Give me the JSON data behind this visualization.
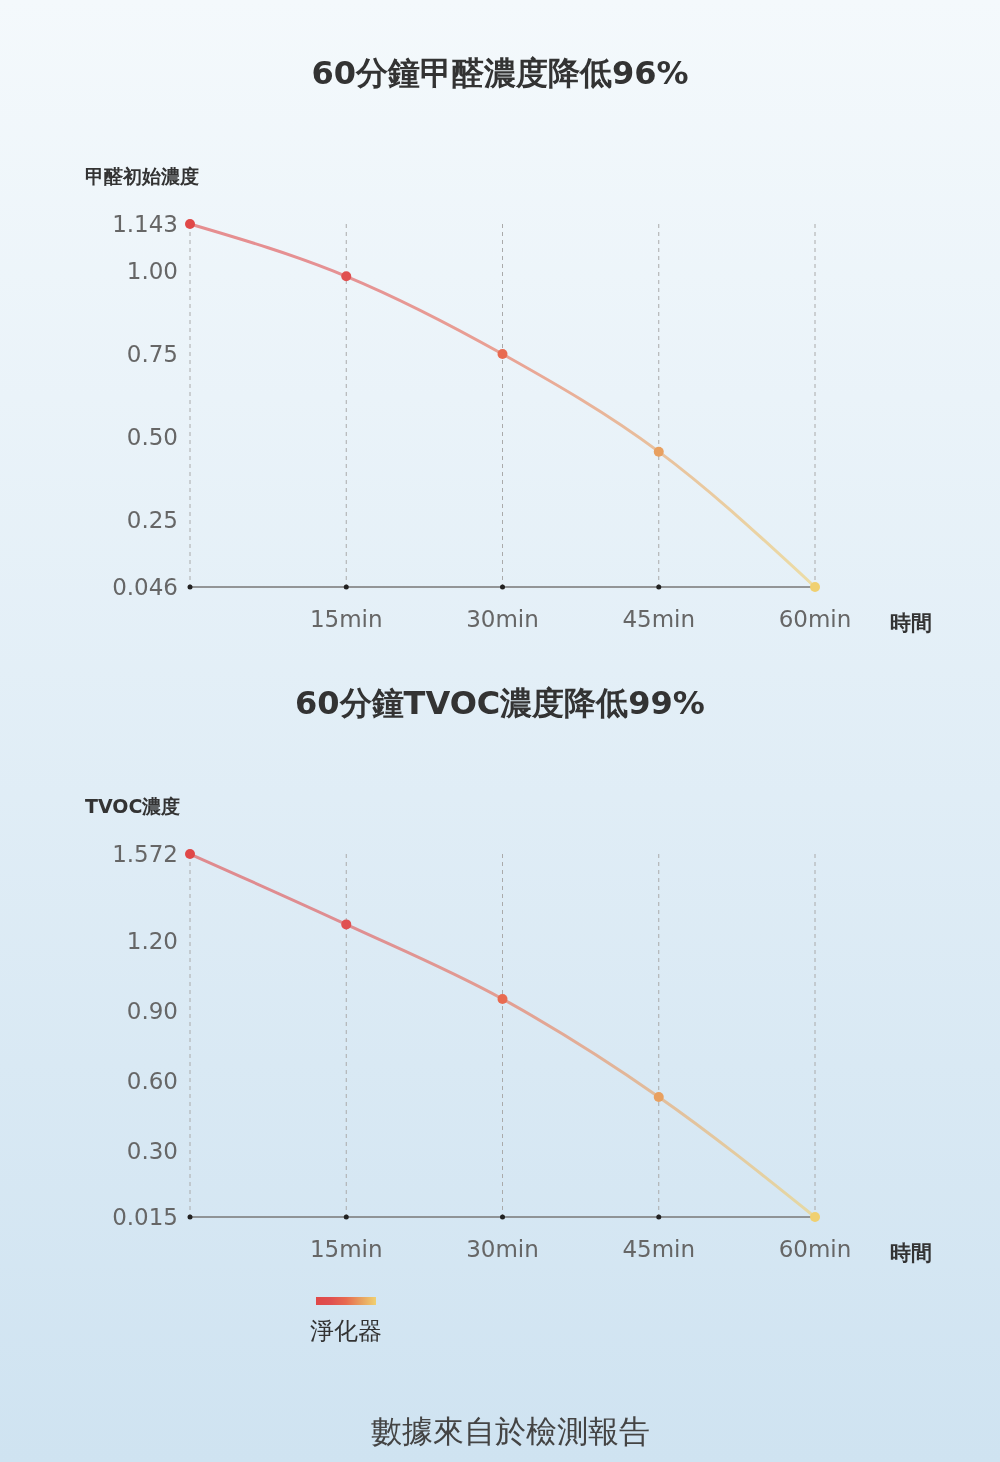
{
  "chart_data": [
    {
      "type": "line",
      "title": "60分鐘甲醛濃度降低96%",
      "ylabel": "甲醛初始濃度",
      "xlabel": "時間",
      "x": [
        0,
        15,
        30,
        45,
        60
      ],
      "xlim": [
        0,
        60
      ],
      "xticks": [
        {
          "value": 0,
          "label": null
        },
        {
          "value": 15,
          "label": "15min"
        },
        {
          "value": 30,
          "label": "30min"
        },
        {
          "value": 45,
          "label": "45min"
        },
        {
          "value": 60,
          "label": "60min"
        }
      ],
      "ylim": [
        0.046,
        1.143
      ],
      "yticks": [
        1.143,
        {
          "value": 1,
          "label": "1.00"
        },
        0.75,
        {
          "value": 0.5,
          "label": "0.50"
        },
        0.25,
        0.046
      ],
      "grid": "x",
      "marker": "circle",
      "line_style": "solid",
      "legend": false,
      "series": [
        {
          "colors": [
            "#e04848",
            "#e05050",
            "#e86a50",
            "#e8a060",
            "#f0d070"
          ],
          "values": [
            1.143,
            0.985,
            0.75,
            0.455,
            0.046
          ]
        }
      ]
    },
    {
      "type": "line",
      "title": "60分鐘TVOC濃度降低99%",
      "ylabel": "TVOC濃度",
      "xlabel": "時間",
      "x": [
        0,
        15,
        30,
        45,
        60
      ],
      "xlim": [
        0,
        60
      ],
      "xticks": [
        {
          "value": 0,
          "label": null
        },
        {
          "value": 15,
          "label": "15min"
        },
        {
          "value": 30,
          "label": "30min"
        },
        {
          "value": 45,
          "label": "45min"
        },
        {
          "value": 60,
          "label": "60min"
        }
      ],
      "ylim": [
        0.015,
        1.572
      ],
      "yticks": [
        1.572,
        {
          "value": 1.2,
          "label": "1.20"
        },
        {
          "value": 0.9,
          "label": "0.90"
        },
        {
          "value": 0.6,
          "label": "0.60"
        },
        {
          "value": 0.3,
          "label": "0.30"
        },
        0.015
      ],
      "grid": "x",
      "marker": "circle",
      "line_style": "solid",
      "legend": "bottom",
      "annotations": [
        "數據來自於檢測報告"
      ],
      "series": [
        {
          "name": "淨化器",
          "colors": [
            "#e04848",
            "#e05050",
            "#e86a50",
            "#e8a060",
            "#f0d070"
          ],
          "values": [
            1.572,
            1.27,
            0.95,
            0.53,
            0.015
          ]
        }
      ]
    }
  ]
}
